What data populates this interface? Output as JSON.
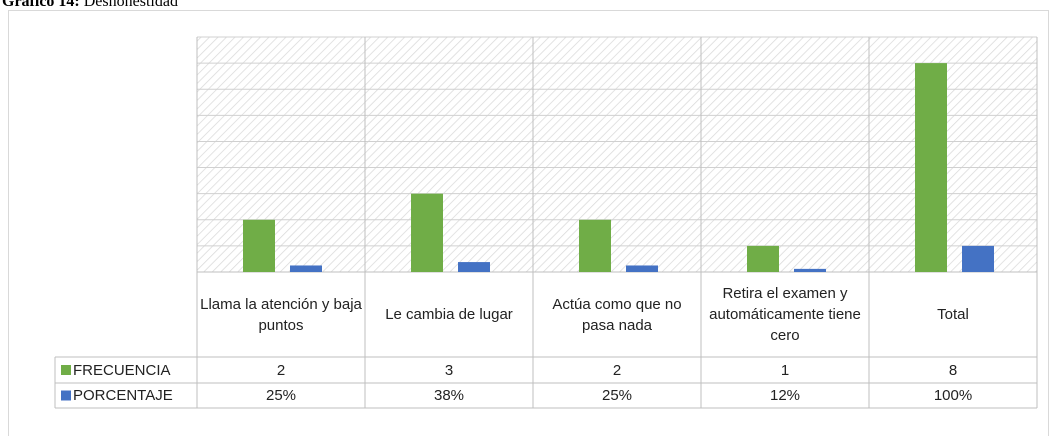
{
  "chart_data": {
    "type": "bar",
    "title_label": "Gráfico 14:",
    "title": "Deshonestidad",
    "categories": [
      "Llama la atención y baja puntos",
      "Le cambia de lugar",
      "Actúa como que no pasa nada",
      "Retira el examen y automáticamente tiene cero",
      "Total"
    ],
    "series": [
      {
        "name": "FRECUENCIA",
        "color": "#70ad47",
        "values": [
          2,
          3,
          2,
          1,
          8
        ]
      },
      {
        "name": "PORCENTAJE",
        "color": "#4472c4",
        "values": [
          0.25,
          0.38,
          0.25,
          0.12,
          1
        ],
        "value_labels": [
          "25%",
          "38%",
          "25%",
          "12%",
          "100%"
        ]
      }
    ],
    "ylim": [
      0,
      9
    ],
    "yticks": [
      0,
      1,
      2,
      3,
      4,
      5,
      6,
      7,
      8,
      9
    ],
    "grid": true,
    "legend": "table"
  }
}
